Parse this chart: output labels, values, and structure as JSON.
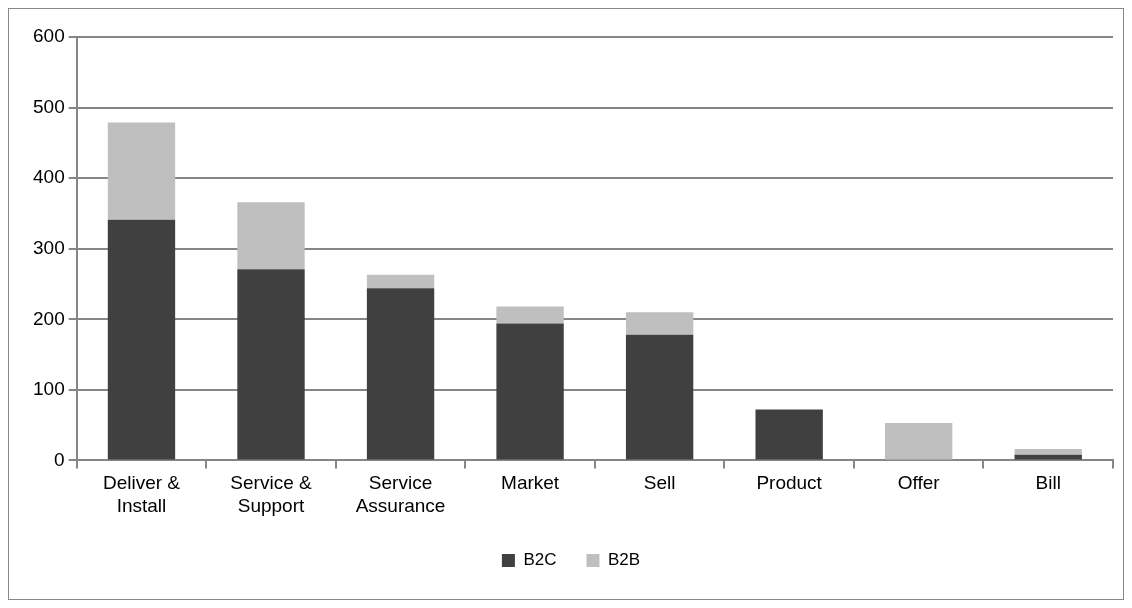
{
  "chart_data": {
    "type": "bar",
    "stacked": true,
    "categories": [
      "Deliver & Install",
      "Service & Support",
      "Service Assurance",
      "Market",
      "Sell",
      "Product",
      "Offer",
      "Bill"
    ],
    "series": [
      {
        "name": "B2C",
        "color": "#404040",
        "values": [
          341,
          271,
          244,
          194,
          178,
          72,
          0,
          8
        ]
      },
      {
        "name": "B2B",
        "color": "#bfbfbf",
        "values": [
          138,
          95,
          19,
          24,
          32,
          0,
          53,
          8
        ]
      }
    ],
    "ylim": [
      0,
      600
    ],
    "yticks": [
      0,
      100,
      200,
      300,
      400,
      500,
      600
    ],
    "grid": "y",
    "legend": "bottom"
  }
}
